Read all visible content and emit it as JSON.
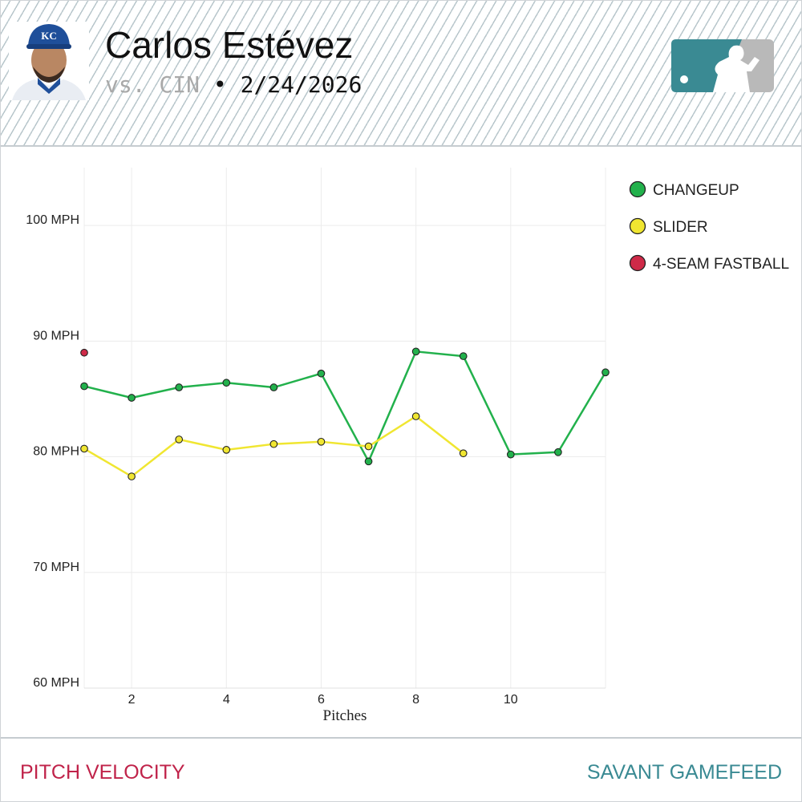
{
  "header": {
    "player_name": "Carlos Estévez",
    "opponent": "vs. CIN",
    "separator": "•",
    "date": "2/24/2026",
    "team_cap_letters": "KC"
  },
  "footer": {
    "left_label": "PITCH VELOCITY",
    "right_label": "SAVANT GAMEFEED"
  },
  "colors": {
    "changeup": "#22b14c",
    "slider": "#f0e631",
    "fastball": "#cf2a48",
    "footer_left": "#c0234a",
    "footer_right": "#3a8a93",
    "logo_teal": "#3a8a93",
    "logo_gray": "#b9b9b9"
  },
  "chart_data": {
    "type": "line",
    "title": "Pitch Velocity",
    "xlabel": "Pitches",
    "ylabel": "",
    "xlim": [
      1,
      12
    ],
    "ylim": [
      60,
      105
    ],
    "x_ticks": [
      2,
      4,
      6,
      8,
      10
    ],
    "y_ticks": [
      60,
      70,
      80,
      90,
      100
    ],
    "y_tick_labels": [
      "60 MPH",
      "70 MPH",
      "80 MPH",
      "90 MPH",
      "100 MPH"
    ],
    "grid": true,
    "legend_position": "right",
    "series": [
      {
        "name": "CHANGEUP",
        "color_key": "changeup",
        "x": [
          1,
          2,
          3,
          4,
          5,
          6,
          7,
          8,
          9,
          10,
          11,
          12
        ],
        "values": [
          86.1,
          85.1,
          86.0,
          86.4,
          86.0,
          87.2,
          79.6,
          89.1,
          88.7,
          80.2,
          80.4,
          87.3
        ]
      },
      {
        "name": "SLIDER",
        "color_key": "slider",
        "x": [
          1,
          2,
          3,
          4,
          5,
          6,
          7,
          8,
          9
        ],
        "values": [
          80.7,
          78.3,
          81.5,
          80.6,
          81.1,
          81.3,
          80.9,
          83.5,
          80.3
        ]
      },
      {
        "name": "4-SEAM FASTBALL",
        "color_key": "fastball",
        "x": [
          1
        ],
        "values": [
          89.0
        ]
      }
    ]
  }
}
